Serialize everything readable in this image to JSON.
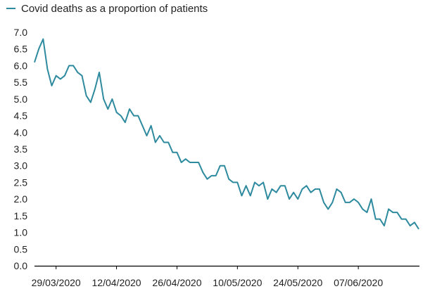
{
  "chart_data": {
    "type": "line",
    "title": "",
    "xlabel": "",
    "ylabel": "",
    "ylim": [
      0,
      7
    ],
    "y_ticks": [
      "0.0",
      "0.5",
      "1.0",
      "1.5",
      "2.0",
      "2.5",
      "3.0",
      "3.5",
      "4.0",
      "4.5",
      "5.0",
      "5.5",
      "6.0",
      "6.5",
      "7.0"
    ],
    "x_tick_labels": [
      {
        "label": "29/03/2020",
        "index": 5
      },
      {
        "label": "12/04/2020",
        "index": 19
      },
      {
        "label": "26/04/2020",
        "index": 33
      },
      {
        "label": "10/05/2020",
        "index": 47
      },
      {
        "label": "24/05/2020",
        "index": 61
      },
      {
        "label": "07/06/2020",
        "index": 75
      }
    ],
    "grid": false,
    "legend_position": "top-left",
    "color": "#2e8a9e",
    "series": [
      {
        "name": "Covid deaths as a proportion of patients",
        "values": [
          6.1,
          6.5,
          6.8,
          5.9,
          5.4,
          5.7,
          5.6,
          5.7,
          6.0,
          6.0,
          5.8,
          5.7,
          5.1,
          4.9,
          5.3,
          5.8,
          5.0,
          4.7,
          5.0,
          4.6,
          4.5,
          4.3,
          4.7,
          4.5,
          4.5,
          4.2,
          3.9,
          4.2,
          3.7,
          3.9,
          3.7,
          3.7,
          3.4,
          3.4,
          3.1,
          3.2,
          3.1,
          3.1,
          3.1,
          2.8,
          2.6,
          2.7,
          2.7,
          3.0,
          3.0,
          2.6,
          2.5,
          2.5,
          2.1,
          2.4,
          2.1,
          2.5,
          2.4,
          2.5,
          2.0,
          2.3,
          2.2,
          2.4,
          2.4,
          2.0,
          2.2,
          2.0,
          2.3,
          2.4,
          2.2,
          2.3,
          2.3,
          1.9,
          1.7,
          1.9,
          2.3,
          2.2,
          1.9,
          1.9,
          2.0,
          1.9,
          1.7,
          1.6,
          2.0,
          1.4,
          1.4,
          1.2,
          1.7,
          1.6,
          1.6,
          1.4,
          1.4,
          1.2,
          1.3,
          1.1
        ]
      }
    ]
  }
}
